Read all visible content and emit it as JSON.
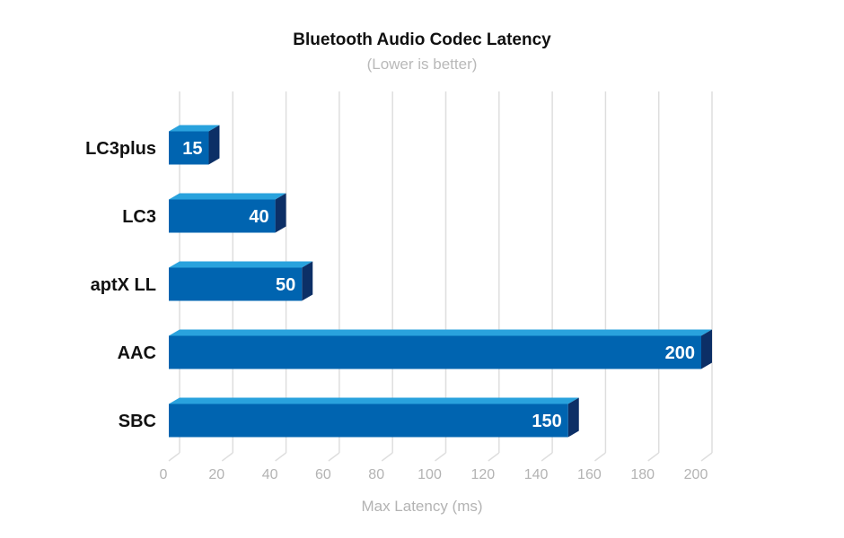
{
  "chart_data": {
    "type": "bar",
    "orientation": "horizontal",
    "title": "Bluetooth Audio Codec Latency",
    "subtitle": "(Lower is better)",
    "xlabel": "Max Latency (ms)",
    "ylabel": "",
    "categories": [
      "LC3plus",
      "LC3",
      "aptX LL",
      "AAC",
      "SBC"
    ],
    "values": [
      15,
      40,
      50,
      200,
      150
    ],
    "xlim": [
      0,
      200
    ],
    "ticks": [
      0,
      20,
      40,
      60,
      80,
      100,
      120,
      140,
      160,
      180,
      200
    ],
    "grid": true,
    "legend": "none",
    "colors": {
      "front": "#0064b0",
      "top": "#29a2dd",
      "side": "#0c2f66",
      "grid": "#dedede",
      "axis_text": "#b3b3b3"
    }
  }
}
